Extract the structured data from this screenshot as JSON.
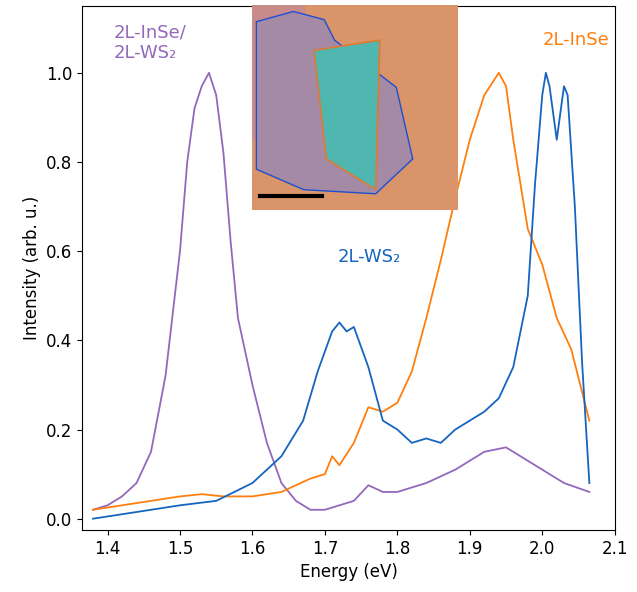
{
  "chart_data": {
    "type": "line",
    "x_label": "Energy (eV)",
    "y_label": "Intensity (arb. u.)",
    "xlim": [
      1.365,
      2.1
    ],
    "ylim": [
      -0.025,
      1.15
    ],
    "xticks": [
      1.4,
      1.5,
      1.6,
      1.7,
      1.8,
      1.9,
      2.0,
      2.1
    ],
    "yticks": [
      0.0,
      0.2,
      0.4,
      0.6,
      0.8,
      1.0
    ],
    "grid": false,
    "series": [
      {
        "name": "2L-InSe/\n2L-WS₂",
        "color": "#9467bd",
        "x": [
          1.38,
          1.4,
          1.42,
          1.44,
          1.46,
          1.48,
          1.5,
          1.51,
          1.52,
          1.53,
          1.54,
          1.55,
          1.56,
          1.57,
          1.58,
          1.6,
          1.62,
          1.64,
          1.66,
          1.68,
          1.7,
          1.72,
          1.74,
          1.76,
          1.78,
          1.8,
          1.84,
          1.88,
          1.92,
          1.95,
          1.98,
          2.0,
          2.03,
          2.065
        ],
        "values": [
          0.02,
          0.03,
          0.05,
          0.08,
          0.15,
          0.32,
          0.6,
          0.8,
          0.92,
          0.97,
          1.0,
          0.95,
          0.82,
          0.62,
          0.45,
          0.3,
          0.17,
          0.08,
          0.04,
          0.02,
          0.02,
          0.03,
          0.04,
          0.075,
          0.06,
          0.06,
          0.08,
          0.11,
          0.15,
          0.16,
          0.13,
          0.11,
          0.08,
          0.06
        ]
      },
      {
        "name": "2L-InSe",
        "color": "#ff7f0e",
        "x": [
          1.38,
          1.42,
          1.46,
          1.5,
          1.53,
          1.56,
          1.6,
          1.64,
          1.68,
          1.7,
          1.71,
          1.72,
          1.74,
          1.76,
          1.78,
          1.8,
          1.82,
          1.84,
          1.86,
          1.88,
          1.9,
          1.92,
          1.94,
          1.95,
          1.96,
          1.98,
          2.0,
          2.02,
          2.04,
          2.065
        ],
        "values": [
          0.02,
          0.03,
          0.04,
          0.05,
          0.055,
          0.05,
          0.05,
          0.06,
          0.09,
          0.1,
          0.14,
          0.12,
          0.17,
          0.25,
          0.24,
          0.26,
          0.33,
          0.45,
          0.58,
          0.72,
          0.85,
          0.95,
          1.0,
          0.97,
          0.85,
          0.65,
          0.57,
          0.45,
          0.38,
          0.22
        ]
      },
      {
        "name": "2L-WS₂",
        "color": "#1565c0",
        "x": [
          1.38,
          1.42,
          1.46,
          1.5,
          1.55,
          1.6,
          1.64,
          1.67,
          1.69,
          1.71,
          1.72,
          1.73,
          1.74,
          1.76,
          1.78,
          1.8,
          1.82,
          1.84,
          1.86,
          1.88,
          1.9,
          1.92,
          1.94,
          1.96,
          1.98,
          1.99,
          2.0,
          2.005,
          2.01,
          2.02,
          2.03,
          2.035,
          2.045,
          2.055,
          2.065
        ],
        "values": [
          0.0,
          0.01,
          0.02,
          0.03,
          0.04,
          0.08,
          0.14,
          0.22,
          0.33,
          0.42,
          0.44,
          0.42,
          0.43,
          0.34,
          0.22,
          0.2,
          0.17,
          0.18,
          0.17,
          0.2,
          0.22,
          0.24,
          0.27,
          0.34,
          0.5,
          0.75,
          0.95,
          1.0,
          0.97,
          0.85,
          0.97,
          0.95,
          0.7,
          0.35,
          0.08
        ]
      }
    ]
  }
}
